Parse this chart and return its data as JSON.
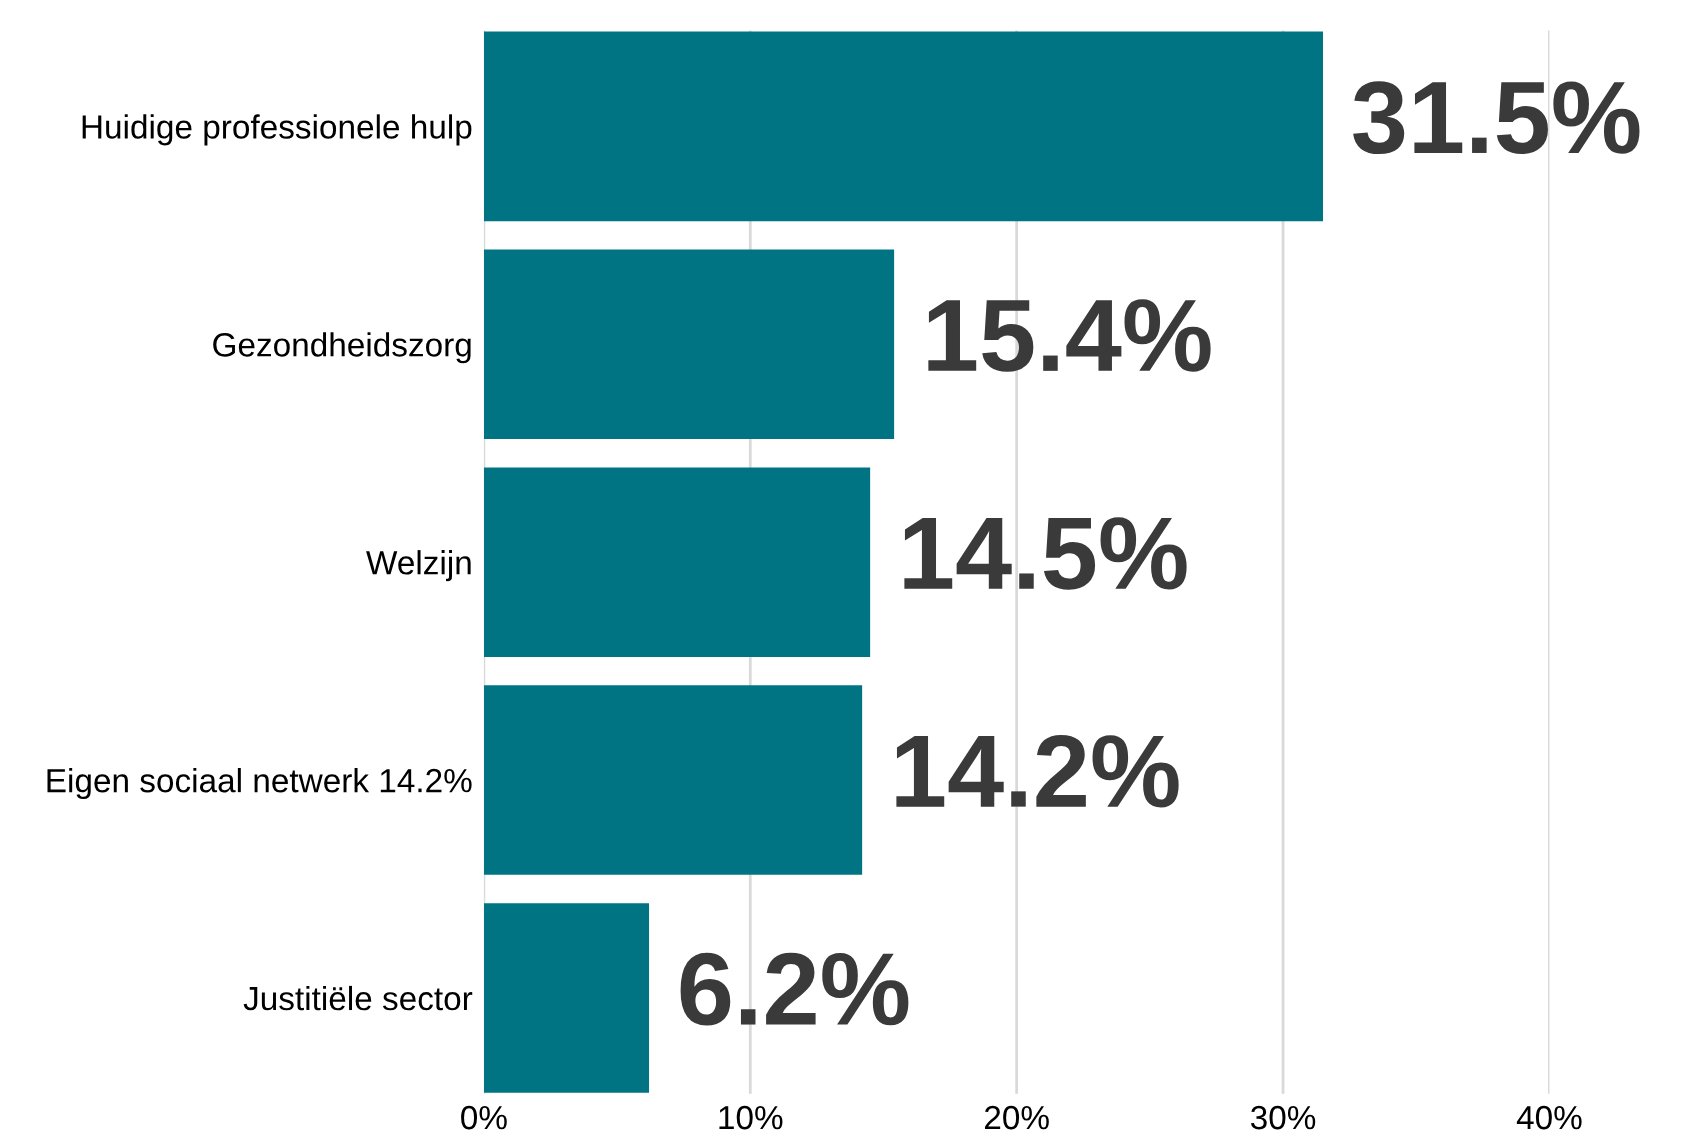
{
  "chart_data": {
    "type": "bar",
    "orientation": "horizontal",
    "categories": [
      "Huidige professionele hulp",
      "Gezondheidszorg",
      "Welzijn",
      "Eigen sociaal netwerk 14.2%",
      "Justitiële sector"
    ],
    "values": [
      31.5,
      15.4,
      14.5,
      14.2,
      6.2
    ],
    "value_labels": [
      "31.5%",
      "15.4%",
      "14.5%",
      "14.2%",
      "6.2%"
    ],
    "color": "#007483",
    "xlim": [
      0,
      40
    ],
    "xticks": [
      {
        "value": 0,
        "label": "0%"
      },
      {
        "value": 10,
        "label": "10%"
      },
      {
        "value": 20,
        "label": "20%"
      },
      {
        "value": 30,
        "label": "30%"
      },
      {
        "value": 40,
        "label": "40%"
      }
    ],
    "grid": "x",
    "legend": false
  }
}
